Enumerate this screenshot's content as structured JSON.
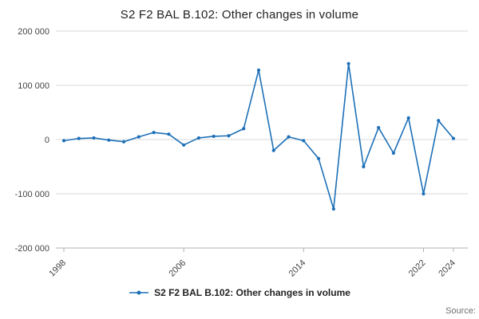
{
  "title": "S2 F2 BAL B.102: Other changes in volume",
  "legend": {
    "label": "S2 F2 BAL B.102: Other changes in volume"
  },
  "source_label": "Source:",
  "colors": {
    "line": "#1d70b8",
    "grid": "#d9d9d9",
    "axis": "#b0b0b0",
    "tick_text": "#444444"
  },
  "chart_data": {
    "type": "line",
    "title": "S2 F2 BAL B.102: Other changes in volume",
    "xlabel": "",
    "ylabel": "",
    "x": [
      1998,
      1999,
      2000,
      2001,
      2002,
      2003,
      2004,
      2005,
      2006,
      2007,
      2008,
      2009,
      2010,
      2011,
      2012,
      2013,
      2014,
      2015,
      2016,
      2017,
      2018,
      2019,
      2020,
      2021,
      2022,
      2023,
      2024
    ],
    "series": [
      {
        "name": "S2 F2 BAL B.102: Other changes in volume",
        "values": [
          -2000,
          2000,
          3000,
          -1000,
          -4000,
          5000,
          13000,
          10000,
          -10000,
          3000,
          6000,
          7000,
          20000,
          128000,
          -20000,
          5000,
          -2000,
          -35000,
          -128000,
          140000,
          -50000,
          22000,
          -25000,
          40000,
          -100000,
          35000,
          2000
        ]
      }
    ],
    "ylim": [
      -200000,
      200000
    ],
    "y_ticks": [
      200000,
      100000,
      0,
      -100000,
      -200000
    ],
    "y_tick_labels": [
      "200 000",
      "100 000",
      "0",
      "-100 000",
      "-200 000"
    ],
    "x_tick_labels": [
      "1998",
      "2006",
      "2014",
      "2022",
      "2024"
    ],
    "grid": true,
    "marker": "point",
    "legend_position": "bottom"
  }
}
